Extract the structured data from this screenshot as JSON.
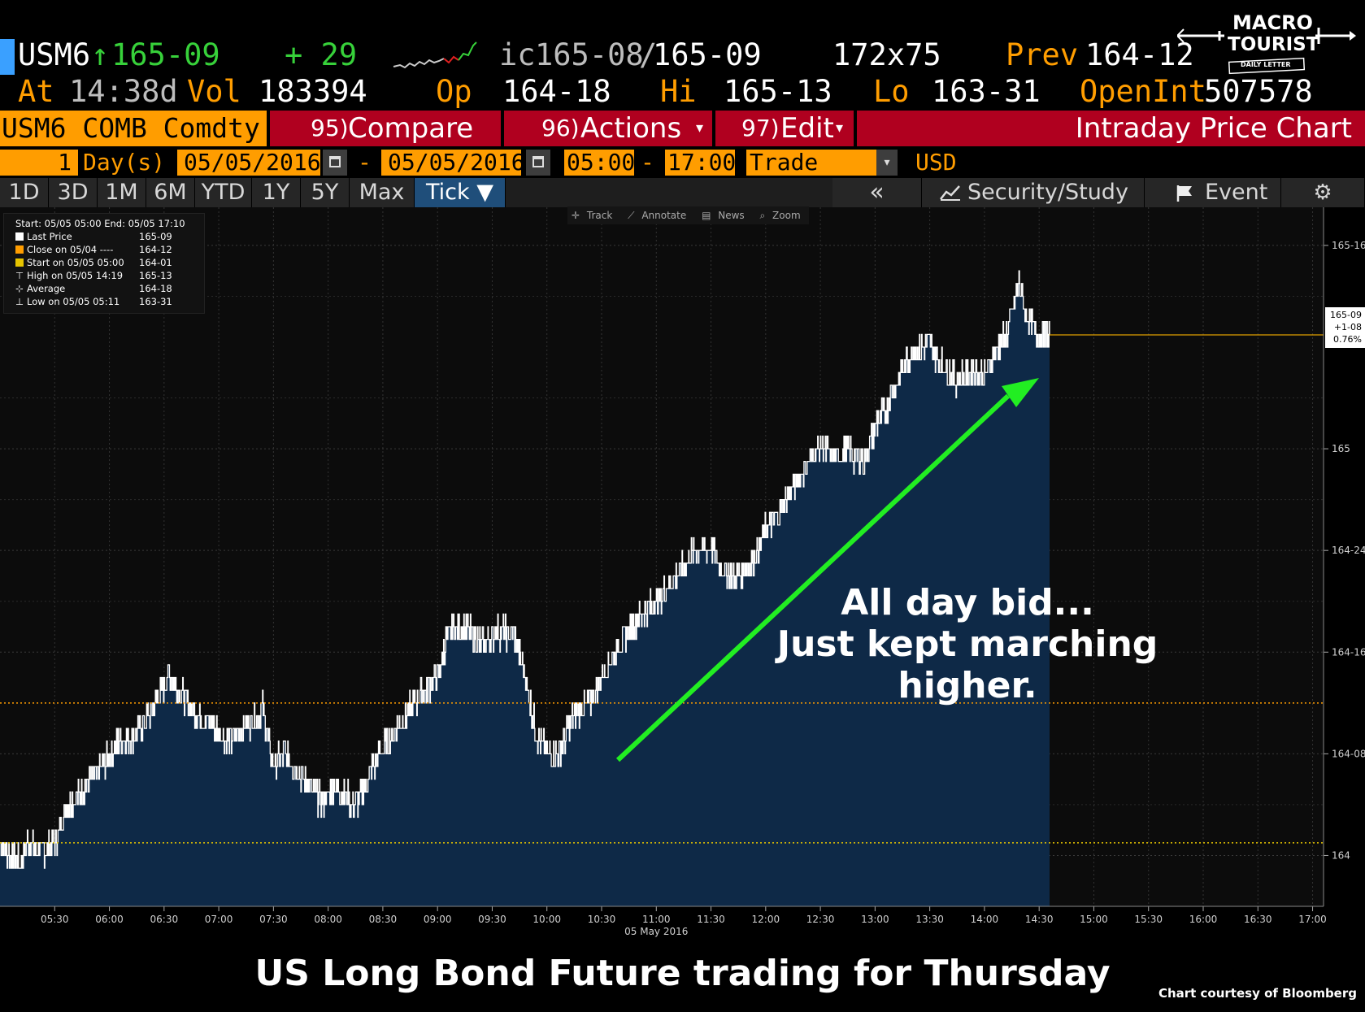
{
  "quote": {
    "ticker": "USM6",
    "arrow": "↑",
    "last": "165-09",
    "change": "+ 29",
    "bid_prefix": "ic",
    "bid": "165-08",
    "slash": "/",
    "ask": "165-09",
    "size": "172x75",
    "prev_label": "Prev",
    "prev": "164-12",
    "at_label": "At",
    "at_time": "14:38d",
    "vol_label": "Vol",
    "vol": "183394",
    "op_label": "Op",
    "op": "164-18",
    "hi_label": "Hi",
    "hi": "165-13",
    "lo_label": "Lo",
    "lo": "163-31",
    "oi_label": "OpenInt",
    "oi": "507578"
  },
  "logo": {
    "line1": "MACRO",
    "line2": "TOURIST",
    "line3": "DAILY LETTER"
  },
  "function_bar": {
    "security": "USM6 COMB Comdty",
    "compare_num": "95)",
    "compare": "Compare",
    "actions_num": "96)",
    "actions": "Actions",
    "edit_num": "97)",
    "edit": "Edit",
    "title": "Intraday Price Chart"
  },
  "settings": {
    "days_count": "1",
    "days_label": "Day(s)",
    "start_date": "05/05/2016",
    "dash1": "-",
    "end_date": "05/05/2016",
    "start_time": "05:00",
    "dash2": "-",
    "end_time": "17:00",
    "type": "Trade",
    "currency": "USD"
  },
  "periods": [
    "1D",
    "3D",
    "1M",
    "6M",
    "YTD",
    "1Y",
    "5Y",
    "Max"
  ],
  "tick_label": "Tick ▼",
  "collapse": "«",
  "security_study": "Security/Study",
  "event": "Event",
  "chart_tools": {
    "track": "Track",
    "annotate": "Annotate",
    "news": "News",
    "zoom": "Zoom"
  },
  "legend": {
    "header": "Start: 05/05 05:00  End: 05/05 17:10",
    "rows": [
      {
        "label": "Last Price",
        "value": "165-09",
        "color": "#ffffff"
      },
      {
        "label": "Close on 05/04 ----",
        "value": "164-12",
        "color": "#ff9d00"
      },
      {
        "label": "Start on 05/05 05:00",
        "value": "164-01",
        "color": "#e6c400"
      },
      {
        "label": "High on 05/05 14:19",
        "value": "165-13",
        "color": ""
      },
      {
        "label": "Average",
        "value": "164-18",
        "color": ""
      },
      {
        "label": "Low on 05/05 05:11",
        "value": "163-31",
        "color": ""
      }
    ]
  },
  "last_box": {
    "price": "165-09",
    "change": "+1-08",
    "pct": "0.76%"
  },
  "chart_data": {
    "type": "area",
    "title": "",
    "xlabel": "05 May 2016",
    "ylabel": "",
    "x_ticks": [
      "05:30",
      "06:00",
      "06:30",
      "07:00",
      "07:30",
      "08:00",
      "08:30",
      "09:00",
      "09:30",
      "10:00",
      "10:30",
      "11:00",
      "11:30",
      "12:00",
      "12:30",
      "13:00",
      "13:30",
      "14:00",
      "14:30",
      "15:00",
      "15:30",
      "16:00",
      "16:30",
      "17:00"
    ],
    "y_ticks": [
      {
        "label": "164",
        "value": 164.0
      },
      {
        "label": "164-08",
        "value": 164.25
      },
      {
        "label": "164-16",
        "value": 164.5
      },
      {
        "label": "164-24",
        "value": 164.75
      },
      {
        "label": "165",
        "value": 165.0
      },
      {
        "label": "165-16",
        "value": 165.5
      }
    ],
    "xlim_hours": [
      5.0,
      17.1
    ],
    "ylim": [
      163.875,
      165.59375
    ],
    "reference_lines": [
      {
        "name": "Close on 05/04",
        "value": 164.375,
        "color": "#ff9d00"
      },
      {
        "name": "Start on 05/05 05:00",
        "value": 164.03125,
        "color": "#e6c400"
      }
    ],
    "series": [
      {
        "name": "Last Price",
        "color": "#ffffff",
        "fill": "#0e2947",
        "x_hours": [
          5.0,
          5.1,
          5.18,
          5.25,
          5.35,
          5.5,
          5.6,
          5.75,
          5.9,
          6.0,
          6.1,
          6.25,
          6.4,
          6.55,
          6.65,
          6.75,
          6.9,
          7.0,
          7.1,
          7.25,
          7.4,
          7.5,
          7.6,
          7.75,
          7.85,
          7.95,
          8.05,
          8.15,
          8.25,
          8.4,
          8.5,
          8.6,
          8.75,
          8.85,
          9.0,
          9.1,
          9.25,
          9.4,
          9.55,
          9.7,
          9.8,
          9.9,
          10.0,
          10.1,
          10.25,
          10.4,
          10.5,
          10.6,
          10.75,
          10.9,
          11.0,
          11.1,
          11.25,
          11.35,
          11.5,
          11.6,
          11.75,
          11.9,
          12.0,
          12.15,
          12.25,
          12.4,
          12.5,
          12.6,
          12.75,
          12.9,
          13.0,
          13.1,
          13.25,
          13.35,
          13.5,
          13.6,
          13.75,
          13.9,
          14.0,
          14.1,
          14.2,
          14.32,
          14.4,
          14.5,
          14.6
        ],
        "values": [
          164.03,
          164.0,
          163.98,
          164.03,
          164.01,
          164.03,
          164.12,
          164.16,
          164.2,
          164.25,
          164.28,
          164.3,
          164.36,
          164.45,
          164.4,
          164.36,
          164.33,
          164.31,
          164.28,
          164.32,
          164.36,
          164.22,
          164.25,
          164.2,
          164.16,
          164.13,
          164.17,
          164.15,
          164.12,
          164.21,
          164.26,
          164.3,
          164.36,
          164.4,
          164.44,
          164.55,
          164.56,
          164.52,
          164.55,
          164.54,
          164.44,
          164.3,
          164.25,
          164.25,
          164.35,
          164.38,
          164.44,
          164.49,
          164.56,
          164.6,
          164.62,
          164.66,
          164.71,
          164.75,
          164.76,
          164.7,
          164.69,
          164.73,
          164.8,
          164.85,
          164.91,
          164.97,
          165.01,
          164.98,
          164.99,
          164.97,
          165.06,
          165.1,
          165.2,
          165.24,
          165.25,
          165.21,
          165.17,
          165.19,
          165.18,
          165.24,
          165.28,
          165.41,
          165.31,
          165.28,
          165.28
        ]
      }
    ],
    "annotation": "All day bid... Just kept marching higher."
  },
  "annotation_lines": [
    "All day bid...",
    "Just kept marching",
    "higher."
  ],
  "caption": "US Long Bond Future trading for Thursday",
  "credit": "Chart courtesy of Bloomberg",
  "colors": {
    "orange": "#ff9d00",
    "green": "#37d13a",
    "red_bar": "#b0001f",
    "chart_fill": "#0e2947",
    "arrow": "#22ee22"
  }
}
